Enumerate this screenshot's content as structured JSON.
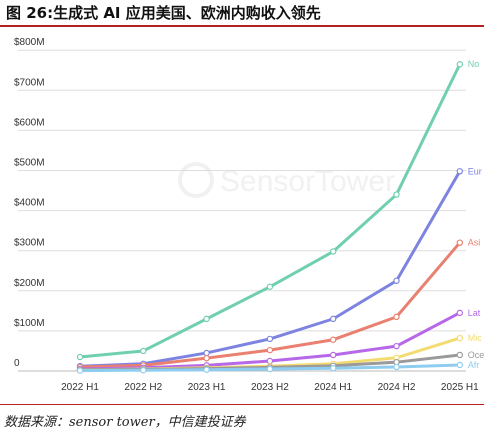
{
  "header": {
    "title": "图 26:生成式 AI 应用美国、欧洲内购收入领先"
  },
  "footer": {
    "source": "数据来源：sensor tower，中信建投证券"
  },
  "watermark": "SensorTower",
  "chart_data": {
    "type": "line",
    "title": "",
    "xlabel": "",
    "ylabel": "",
    "categories": [
      "2022 H1",
      "2022 H2",
      "2023 H1",
      "2023 H2",
      "2024 H1",
      "2024 H2",
      "2025 H1"
    ],
    "y_ticks": [
      "0",
      "$100M",
      "$200M",
      "$300M",
      "$400M",
      "$500M",
      "$600M",
      "$700M",
      "$800M"
    ],
    "ylim": [
      0,
      800
    ],
    "grid": true,
    "legend": "line-end labels",
    "series": [
      {
        "name": "No",
        "color": "#6fcfb0",
        "values": [
          35,
          50,
          130,
          210,
          298,
          440,
          765
        ]
      },
      {
        "name": "Eur",
        "color": "#7d83e0",
        "values": [
          12,
          18,
          45,
          80,
          130,
          225,
          498
        ]
      },
      {
        "name": "Asi",
        "color": "#ea8070",
        "values": [
          10,
          14,
          32,
          52,
          78,
          135,
          320
        ]
      },
      {
        "name": "Lat",
        "color": "#b668e8",
        "values": [
          5,
          8,
          14,
          25,
          40,
          62,
          145
        ]
      },
      {
        "name": "Mic",
        "color": "#f2dc72",
        "values": [
          3,
          5,
          8,
          12,
          18,
          33,
          82
        ]
      },
      {
        "name": "Oce",
        "color": "#9a9a9a",
        "values": [
          3,
          4,
          6,
          9,
          13,
          22,
          40
        ]
      },
      {
        "name": "Afr",
        "color": "#8ecdf0",
        "values": [
          1,
          2,
          3,
          5,
          7,
          10,
          15
        ]
      }
    ]
  }
}
